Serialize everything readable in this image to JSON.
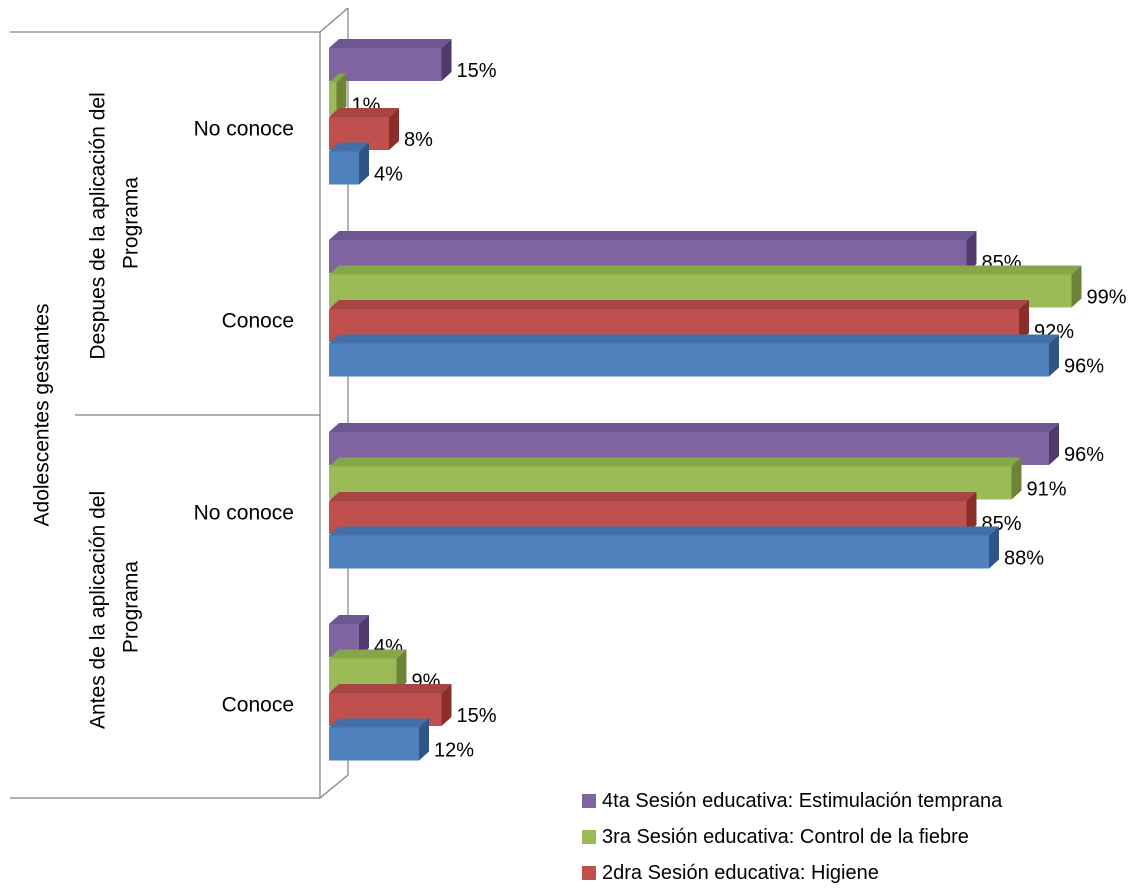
{
  "chart_data": {
    "type": "bar",
    "orientation": "horizontal",
    "three_d": true,
    "outer_category": "Adolescentes  gestantes",
    "groups": [
      {
        "label": "Despues de la aplicación del Programa",
        "categories": [
          "No conoce",
          "Conoce"
        ]
      },
      {
        "label": "Antes de la aplicación del Programa",
        "categories": [
          "No conoce",
          "Conoce"
        ]
      }
    ],
    "series": [
      {
        "name": "4ta Sesión educativa: Estimulación temprana",
        "color": "#8064A2",
        "values": [
          15,
          85,
          96,
          4
        ],
        "labels": [
          "15%",
          "85%",
          "96%",
          "4%"
        ]
      },
      {
        "name": "3ra Sesión educativa: Control de la fiebre",
        "color": "#9BBB59",
        "values": [
          1,
          99,
          91,
          9
        ],
        "labels": [
          "1%",
          "99%",
          "91%",
          "9%"
        ]
      },
      {
        "name": "2dra Sesión educativa: Higiene",
        "color": "#C0504D",
        "values": [
          8,
          92,
          85,
          15
        ],
        "labels": [
          "8%",
          "92%",
          "85%",
          "15%"
        ]
      },
      {
        "name": "",
        "color": "#4F81BD",
        "values": [
          4,
          96,
          88,
          12
        ],
        "labels": [
          "4%",
          "96%",
          "88%",
          "12%"
        ]
      }
    ],
    "xlim": [
      0,
      100
    ],
    "legend_position": "bottom-right",
    "grid": false
  }
}
